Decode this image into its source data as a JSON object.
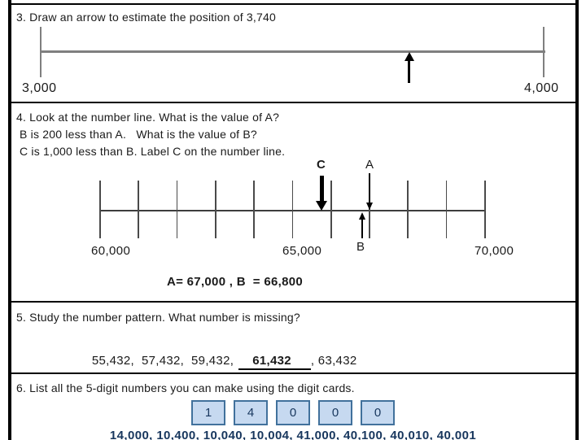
{
  "q3": {
    "title": "3. Draw an arrow to estimate the position of 3,740",
    "number_line": {
      "start_label": "3,000",
      "end_label": "4,000",
      "min": 3000,
      "max": 4000,
      "arrow_marks_value": 3740
    }
  },
  "q4": {
    "line1": "4. Look at the number line. What is the value of A?",
    "line2": "B is 200 less than A.   What is the value of B?",
    "line3": "C is 1,000 less than B. Label C on the number line.",
    "number_line": {
      "min": 60000,
      "max": 70000,
      "tick_step": 1000,
      "tick_count": 11,
      "label_min": "60,000",
      "label_mid": "65,000",
      "label_max": "70,000",
      "markers": {
        "C": {
          "label": "C",
          "value": 65800,
          "arrow": "thick-down"
        },
        "A": {
          "label": "A",
          "value": 67000,
          "arrow": "thin-down"
        },
        "B": {
          "label": "B",
          "value": 66800,
          "arrow": "thin-up"
        }
      }
    },
    "marker_c": "C",
    "marker_a": "A",
    "marker_b": "B",
    "answer": "A= 67,000 , B  = 66,800"
  },
  "q5": {
    "title": "5. Study the number pattern. What number is missing?",
    "sequence_before": "55,432,  57,432,  59,432,",
    "missing_answer": "61,432",
    "sequence_after": ", 63,432"
  },
  "q6": {
    "title": "6. List all the 5-digit numbers you can make using the digit cards.",
    "cards": [
      "1",
      "4",
      "0",
      "0",
      "0"
    ],
    "answer": "14,000, 10,400, 10,040, 10,004, 41,000, 40,100, 40,010, 40,001"
  },
  "colors": {
    "border": "#000000",
    "q3_line_gray": "#7f7f7f",
    "q4_line": "#3d3d3d",
    "card_fill": "#c6d9f0",
    "card_border": "#41719c"
  }
}
